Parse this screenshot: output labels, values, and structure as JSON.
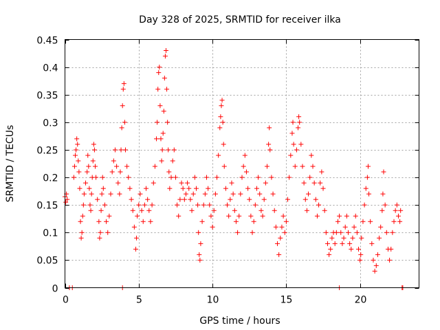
{
  "chart_data": {
    "type": "scatter",
    "title": "Day 328 of 2025, SRMTID for receiver ilka",
    "xlabel": "GPS time / hours",
    "ylabel": "SRMTID / TECUs",
    "xlim": [
      0,
      24
    ],
    "ylim": [
      0,
      0.45
    ],
    "xticks": [
      0,
      5,
      10,
      15,
      20
    ],
    "yticks": [
      0,
      0.05,
      0.1,
      0.15,
      0.2,
      0.25,
      0.3,
      0.35,
      0.4,
      0.45
    ],
    "xtick_labels": [
      "0",
      "5",
      "10",
      "15",
      "20"
    ],
    "ytick_labels": [
      "0",
      "0.05",
      "0.1",
      "0.15",
      "0.2",
      "0.25",
      "0.3",
      "0.35",
      "0.4",
      "0.45"
    ],
    "grid": true,
    "marker": "+",
    "color": "#ff0000",
    "series": [
      {
        "name": "SRMTID",
        "points": [
          [
            0.0,
            0.165
          ],
          [
            0.05,
            0.155
          ],
          [
            0.1,
            0.17
          ],
          [
            0.15,
            0.16
          ],
          [
            0.3,
            0.0
          ],
          [
            0.5,
            0.0
          ],
          [
            0.6,
            0.2
          ],
          [
            0.65,
            0.22
          ],
          [
            0.7,
            0.24
          ],
          [
            0.75,
            0.25
          ],
          [
            0.8,
            0.27
          ],
          [
            0.85,
            0.26
          ],
          [
            0.9,
            0.23
          ],
          [
            0.95,
            0.21
          ],
          [
            1.0,
            0.18
          ],
          [
            1.05,
            0.12
          ],
          [
            1.1,
            0.09
          ],
          [
            1.15,
            0.1
          ],
          [
            1.2,
            0.13
          ],
          [
            1.25,
            0.15
          ],
          [
            1.3,
            0.17
          ],
          [
            1.4,
            0.19
          ],
          [
            1.5,
            0.21
          ],
          [
            1.55,
            0.24
          ],
          [
            1.6,
            0.22
          ],
          [
            1.65,
            0.18
          ],
          [
            1.7,
            0.15
          ],
          [
            1.75,
            0.14
          ],
          [
            1.8,
            0.17
          ],
          [
            1.85,
            0.2
          ],
          [
            1.9,
            0.23
          ],
          [
            1.95,
            0.26
          ],
          [
            2.0,
            0.25
          ],
          [
            2.05,
            0.22
          ],
          [
            2.1,
            0.2
          ],
          [
            2.2,
            0.16
          ],
          [
            2.3,
            0.12
          ],
          [
            2.35,
            0.09
          ],
          [
            2.4,
            0.1
          ],
          [
            2.45,
            0.14
          ],
          [
            2.5,
            0.17
          ],
          [
            2.55,
            0.2
          ],
          [
            2.6,
            0.18
          ],
          [
            2.7,
            0.15
          ],
          [
            2.8,
            0.12
          ],
          [
            2.9,
            0.1
          ],
          [
            3.0,
            0.13
          ],
          [
            3.1,
            0.17
          ],
          [
            3.2,
            0.21
          ],
          [
            3.3,
            0.23
          ],
          [
            3.4,
            0.25
          ],
          [
            3.5,
            0.22
          ],
          [
            3.6,
            0.19
          ],
          [
            3.7,
            0.17
          ],
          [
            3.75,
            0.21
          ],
          [
            3.8,
            0.25
          ],
          [
            3.85,
            0.29
          ],
          [
            3.9,
            0.33
          ],
          [
            3.95,
            0.36
          ],
          [
            4.0,
            0.37
          ],
          [
            4.05,
            0.3
          ],
          [
            4.1,
            0.25
          ],
          [
            4.2,
            0.22
          ],
          [
            3.9,
            0.0
          ],
          [
            4.3,
            0.2
          ],
          [
            4.4,
            0.18
          ],
          [
            4.5,
            0.16
          ],
          [
            4.6,
            0.14
          ],
          [
            4.7,
            0.11
          ],
          [
            4.8,
            0.07
          ],
          [
            4.85,
            0.09
          ],
          [
            4.9,
            0.13
          ],
          [
            5.0,
            0.15
          ],
          [
            5.1,
            0.17
          ],
          [
            5.2,
            0.14
          ],
          [
            5.3,
            0.12
          ],
          [
            5.4,
            0.15
          ],
          [
            5.5,
            0.18
          ],
          [
            5.6,
            0.16
          ],
          [
            5.7,
            0.14
          ],
          [
            5.8,
            0.12
          ],
          [
            5.9,
            0.15
          ],
          [
            6.0,
            0.19
          ],
          [
            6.1,
            0.22
          ],
          [
            6.2,
            0.27
          ],
          [
            6.25,
            0.3
          ],
          [
            6.3,
            0.36
          ],
          [
            6.35,
            0.39
          ],
          [
            6.4,
            0.4
          ],
          [
            6.45,
            0.33
          ],
          [
            6.5,
            0.27
          ],
          [
            6.55,
            0.23
          ],
          [
            6.6,
            0.25
          ],
          [
            6.65,
            0.28
          ],
          [
            6.7,
            0.32
          ],
          [
            6.75,
            0.38
          ],
          [
            6.8,
            0.42
          ],
          [
            6.85,
            0.43
          ],
          [
            6.9,
            0.36
          ],
          [
            6.95,
            0.3
          ],
          [
            7.0,
            0.25
          ],
          [
            7.05,
            0.21
          ],
          [
            7.1,
            0.18
          ],
          [
            7.2,
            0.2
          ],
          [
            7.3,
            0.23
          ],
          [
            7.4,
            0.25
          ],
          [
            7.5,
            0.2
          ],
          [
            7.6,
            0.15
          ],
          [
            7.7,
            0.13
          ],
          [
            7.8,
            0.16
          ],
          [
            7.9,
            0.19
          ],
          [
            8.0,
            0.18
          ],
          [
            8.1,
            0.16
          ],
          [
            8.2,
            0.17
          ],
          [
            8.3,
            0.19
          ],
          [
            8.4,
            0.18
          ],
          [
            8.5,
            0.16
          ],
          [
            8.6,
            0.14
          ],
          [
            8.7,
            0.17
          ],
          [
            8.8,
            0.2
          ],
          [
            8.9,
            0.18
          ],
          [
            9.0,
            0.15
          ],
          [
            9.05,
            0.1
          ],
          [
            9.1,
            0.06
          ],
          [
            9.15,
            0.05
          ],
          [
            9.2,
            0.08
          ],
          [
            9.3,
            0.12
          ],
          [
            9.4,
            0.15
          ],
          [
            9.5,
            0.17
          ],
          [
            9.6,
            0.2
          ],
          [
            9.7,
            0.18
          ],
          [
            9.8,
            0.15
          ],
          [
            9.9,
            0.13
          ],
          [
            10.0,
            0.11
          ],
          [
            10.1,
            0.14
          ],
          [
            10.2,
            0.17
          ],
          [
            10.3,
            0.2
          ],
          [
            10.4,
            0.24
          ],
          [
            10.5,
            0.29
          ],
          [
            10.55,
            0.31
          ],
          [
            10.6,
            0.33
          ],
          [
            10.65,
            0.34
          ],
          [
            10.7,
            0.3
          ],
          [
            10.75,
            0.26
          ],
          [
            10.8,
            0.22
          ],
          [
            10.9,
            0.18
          ],
          [
            11.0,
            0.15
          ],
          [
            11.1,
            0.13
          ],
          [
            11.2,
            0.16
          ],
          [
            11.3,
            0.19
          ],
          [
            11.4,
            0.17
          ],
          [
            11.5,
            0.14
          ],
          [
            11.6,
            0.12
          ],
          [
            11.7,
            0.1
          ],
          [
            11.8,
            0.13
          ],
          [
            11.9,
            0.17
          ],
          [
            12.0,
            0.2
          ],
          [
            12.1,
            0.22
          ],
          [
            12.2,
            0.24
          ],
          [
            12.3,
            0.21
          ],
          [
            12.4,
            0.18
          ],
          [
            12.5,
            0.16
          ],
          [
            12.6,
            0.13
          ],
          [
            12.7,
            0.1
          ],
          [
            12.8,
            0.12
          ],
          [
            12.9,
            0.15
          ],
          [
            13.0,
            0.18
          ],
          [
            13.1,
            0.2
          ],
          [
            13.2,
            0.17
          ],
          [
            13.3,
            0.14
          ],
          [
            13.4,
            0.13
          ],
          [
            13.5,
            0.16
          ],
          [
            13.6,
            0.19
          ],
          [
            13.7,
            0.22
          ],
          [
            13.8,
            0.26
          ],
          [
            13.85,
            0.29
          ],
          [
            13.9,
            0.25
          ],
          [
            14.0,
            0.2
          ],
          [
            14.1,
            0.17
          ],
          [
            14.2,
            0.14
          ],
          [
            14.3,
            0.11
          ],
          [
            14.4,
            0.08
          ],
          [
            14.5,
            0.06
          ],
          [
            14.6,
            0.09
          ],
          [
            14.7,
            0.11
          ],
          [
            14.8,
            0.13
          ],
          [
            14.9,
            0.1
          ],
          [
            15.0,
            0.12
          ],
          [
            15.1,
            0.16
          ],
          [
            15.2,
            0.2
          ],
          [
            15.3,
            0.24
          ],
          [
            15.4,
            0.28
          ],
          [
            15.45,
            0.3
          ],
          [
            15.5,
            0.26
          ],
          [
            15.6,
            0.22
          ],
          [
            15.7,
            0.25
          ],
          [
            15.8,
            0.29
          ],
          [
            15.85,
            0.31
          ],
          [
            15.9,
            0.3
          ],
          [
            16.0,
            0.26
          ],
          [
            16.1,
            0.22
          ],
          [
            16.2,
            0.19
          ],
          [
            16.3,
            0.16
          ],
          [
            16.4,
            0.14
          ],
          [
            16.5,
            0.17
          ],
          [
            16.6,
            0.2
          ],
          [
            16.7,
            0.24
          ],
          [
            16.8,
            0.22
          ],
          [
            16.9,
            0.19
          ],
          [
            17.0,
            0.16
          ],
          [
            17.1,
            0.13
          ],
          [
            17.2,
            0.15
          ],
          [
            17.3,
            0.19
          ],
          [
            17.4,
            0.21
          ],
          [
            17.5,
            0.18
          ],
          [
            17.6,
            0.14
          ],
          [
            17.7,
            0.1
          ],
          [
            17.8,
            0.08
          ],
          [
            17.9,
            0.06
          ],
          [
            18.0,
            0.07
          ],
          [
            18.1,
            0.09
          ],
          [
            18.2,
            0.1
          ],
          [
            18.3,
            0.08
          ],
          [
            18.4,
            0.1
          ],
          [
            18.5,
            0.12
          ],
          [
            18.6,
            0.13
          ],
          [
            18.7,
            0.1
          ],
          [
            18.8,
            0.08
          ],
          [
            18.9,
            0.09
          ],
          [
            19.0,
            0.11
          ],
          [
            19.1,
            0.13
          ],
          [
            19.2,
            0.1
          ],
          [
            19.3,
            0.08
          ],
          [
            19.4,
            0.07
          ],
          [
            19.5,
            0.09
          ],
          [
            19.6,
            0.11
          ],
          [
            19.7,
            0.13
          ],
          [
            19.8,
            0.1
          ],
          [
            19.9,
            0.07
          ],
          [
            20.0,
            0.05
          ],
          [
            20.05,
            0.06
          ],
          [
            20.1,
            0.09
          ],
          [
            20.2,
            0.12
          ],
          [
            20.3,
            0.15
          ],
          [
            20.4,
            0.18
          ],
          [
            20.5,
            0.2
          ],
          [
            20.55,
            0.22
          ],
          [
            20.6,
            0.17
          ],
          [
            20.7,
            0.12
          ],
          [
            20.8,
            0.08
          ],
          [
            20.9,
            0.05
          ],
          [
            21.0,
            0.03
          ],
          [
            21.1,
            0.04
          ],
          [
            21.2,
            0.06
          ],
          [
            21.3,
            0.09
          ],
          [
            21.4,
            0.11
          ],
          [
            21.5,
            0.14
          ],
          [
            21.55,
            0.17
          ],
          [
            21.6,
            0.21
          ],
          [
            21.7,
            0.15
          ],
          [
            21.8,
            0.1
          ],
          [
            21.9,
            0.07
          ],
          [
            22.0,
            0.05
          ],
          [
            22.1,
            0.07
          ],
          [
            22.2,
            0.1
          ],
          [
            22.3,
            0.12
          ],
          [
            22.4,
            0.14
          ],
          [
            22.5,
            0.15
          ],
          [
            22.6,
            0.13
          ],
          [
            22.7,
            0.12
          ],
          [
            22.75,
            0.14
          ],
          [
            18.6,
            0.0
          ],
          [
            22.85,
            0.0
          ],
          [
            22.9,
            0.0
          ]
        ]
      }
    ]
  }
}
